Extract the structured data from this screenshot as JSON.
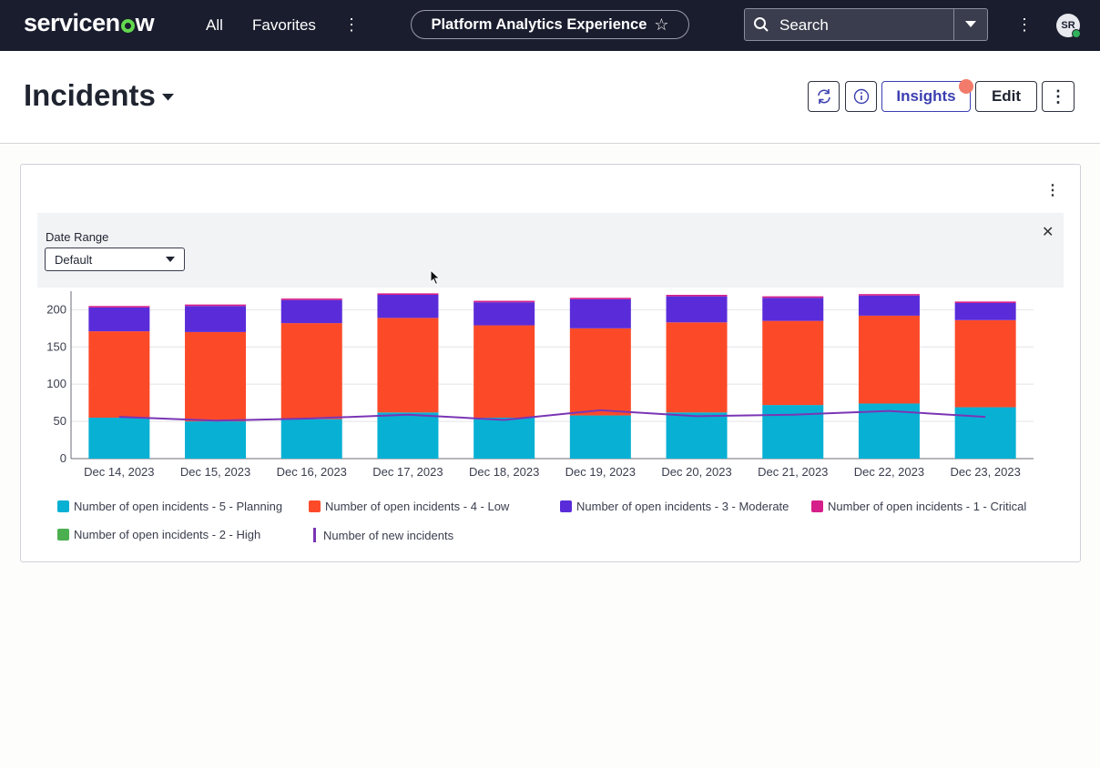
{
  "topbar": {
    "logo_left": "servicen",
    "logo_right": "w",
    "nav_all": "All",
    "nav_favorites": "Favorites",
    "workspace": "Platform Analytics Experience",
    "search_placeholder": "Search",
    "avatar_initials": "SR"
  },
  "header": {
    "title": "Incidents",
    "insights_label": "Insights",
    "edit_label": "Edit"
  },
  "filter": {
    "label": "Date Range",
    "value": "Default"
  },
  "colors": {
    "planning": "#08b0d4",
    "low": "#fc4a29",
    "moderate": "#5a2cd9",
    "critical": "#d61f8a",
    "high": "#4caf50",
    "new": "#7a35b5"
  },
  "chart_data": {
    "type": "bar",
    "stacked": true,
    "categories": [
      "Dec 14, 2023",
      "Dec 15, 2023",
      "Dec 16, 2023",
      "Dec 17, 2023",
      "Dec 18, 2023",
      "Dec 19, 2023",
      "Dec 20, 2023",
      "Dec 21, 2023",
      "Dec 22, 2023",
      "Dec 23, 2023"
    ],
    "ylim": [
      0,
      220
    ],
    "yticks": [
      0,
      50,
      100,
      150,
      200
    ],
    "grid": true,
    "legend_position": "bottom",
    "series": [
      {
        "name": "Number of open incidents - 5 - Planning",
        "type": "bar",
        "color_key": "planning",
        "values": [
          55,
          50,
          53,
          62,
          55,
          58,
          62,
          72,
          74,
          69
        ]
      },
      {
        "name": "Number of open incidents - 4 - Low",
        "type": "bar",
        "color_key": "low",
        "values": [
          116,
          120,
          129,
          127,
          124,
          117,
          121,
          113,
          118,
          117
        ]
      },
      {
        "name": "Number of open incidents - 3 - Moderate",
        "type": "bar",
        "color_key": "moderate",
        "values": [
          32,
          35,
          31,
          31,
          31,
          39,
          35,
          31,
          27,
          23
        ]
      },
      {
        "name": "Number of open incidents - 1 - Critical",
        "type": "bar",
        "color_key": "critical",
        "values": [
          2,
          2,
          2,
          2,
          2,
          2,
          2,
          2,
          2,
          2
        ]
      },
      {
        "name": "Number of open incidents - 2 - High",
        "type": "bar",
        "color_key": "high",
        "values": [
          0,
          0,
          0,
          0,
          0,
          0,
          0,
          0,
          0,
          0
        ]
      },
      {
        "name": "Number of new incidents",
        "type": "line",
        "color_key": "new",
        "values": [
          56,
          51,
          54,
          59,
          52,
          65,
          57,
          59,
          64,
          56
        ]
      }
    ]
  }
}
